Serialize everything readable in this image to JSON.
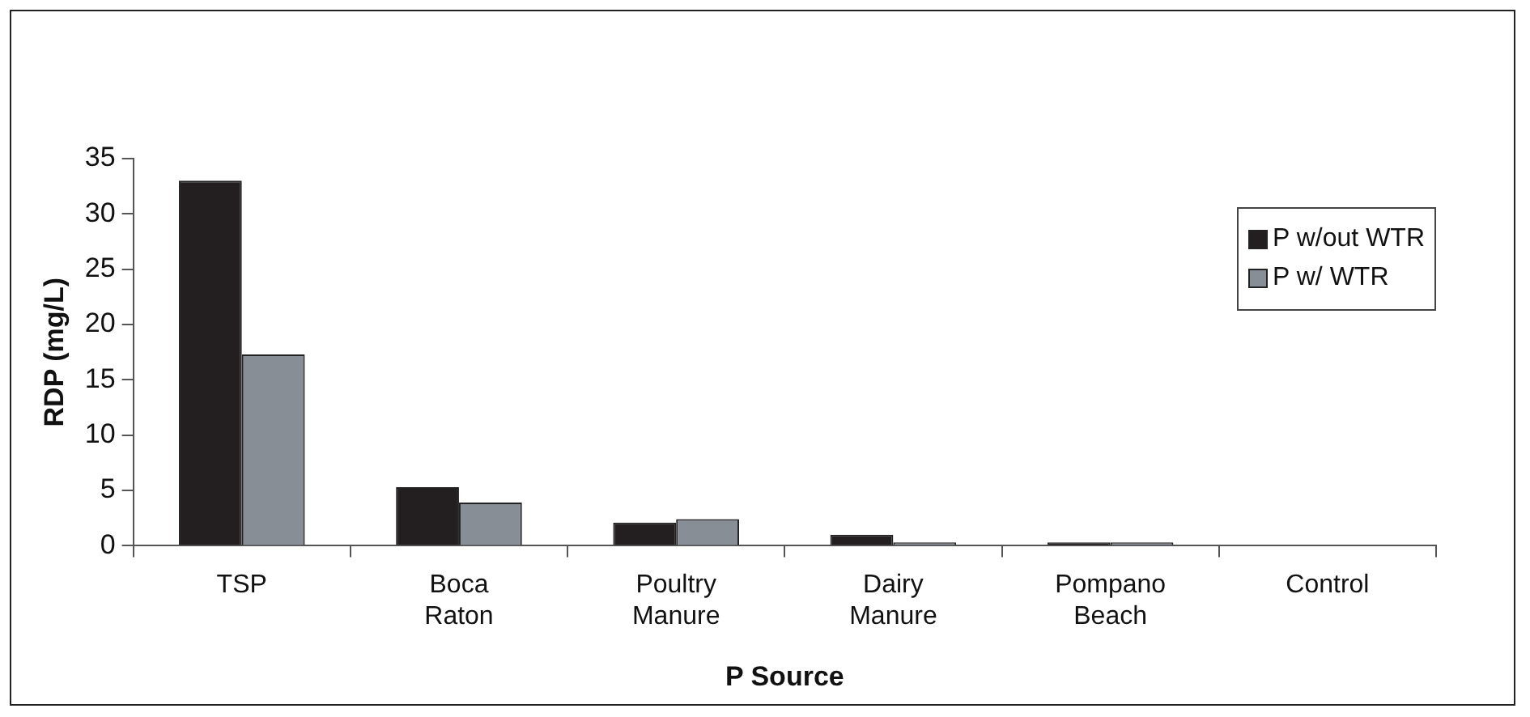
{
  "chart_data": {
    "type": "bar",
    "xlabel": "P Source",
    "ylabel": "RDP (mg/L)",
    "categories": [
      "TSP",
      "Boca Raton",
      "Poultry Manure",
      "Dairy Manure",
      "Pompano Beach",
      "Control"
    ],
    "series": [
      {
        "name": "P w/out WTR",
        "color": "#231f20",
        "values": [
          33,
          5.3,
          2.1,
          1.0,
          0.3,
          0
        ]
      },
      {
        "name": "P w/ WTR",
        "color": "#878e95",
        "values": [
          17.3,
          3.9,
          2.4,
          0.3,
          0.3,
          0
        ]
      }
    ],
    "ylim": [
      0,
      35
    ],
    "yticks": [
      0,
      5,
      10,
      15,
      20,
      25,
      30,
      35
    ],
    "grid": false,
    "legend": "top right"
  }
}
